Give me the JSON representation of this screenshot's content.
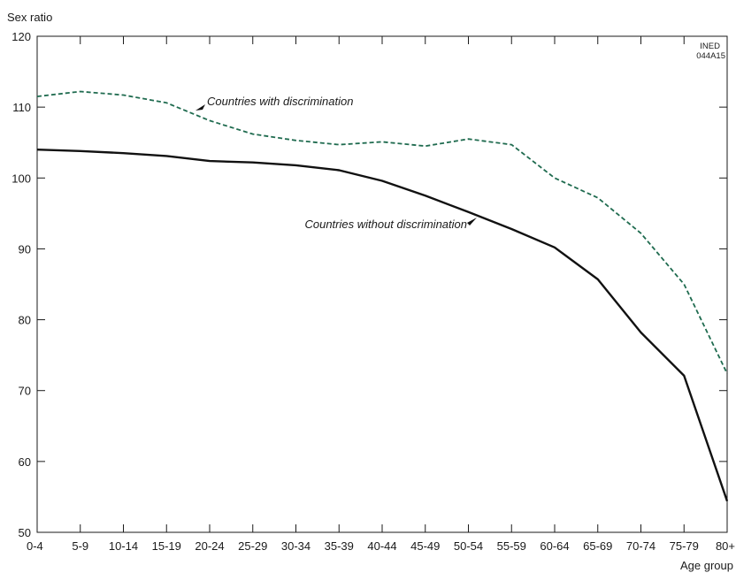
{
  "chart_data": {
    "type": "line",
    "xlabel": "Age group",
    "ylabel": "Sex ratio",
    "ylim": [
      50,
      120
    ],
    "yticks": [
      50,
      60,
      70,
      80,
      90,
      100,
      110,
      120
    ],
    "grid": false,
    "categories": [
      "0-4",
      "5-9",
      "10-14",
      "15-19",
      "20-24",
      "25-29",
      "30-34",
      "35-39",
      "40-44",
      "45-49",
      "50-54",
      "55-59",
      "60-64",
      "65-69",
      "70-74",
      "75-79",
      "80+"
    ],
    "series": [
      {
        "name": "Countries with discrimination",
        "color": "#1f6b4f",
        "style": "dashed",
        "values": [
          111.5,
          112.2,
          111.7,
          110.6,
          108.1,
          106.2,
          105.3,
          104.7,
          105.1,
          104.5,
          105.5,
          104.7,
          100.0,
          97.2,
          92.2,
          85.0,
          72.4
        ]
      },
      {
        "name": "Countries without discrimination",
        "color": "#111111",
        "style": "solid",
        "values": [
          104.0,
          103.8,
          103.5,
          103.1,
          102.4,
          102.2,
          101.8,
          101.1,
          99.6,
          97.5,
          95.2,
          92.8,
          90.2,
          85.7,
          78.2,
          72.1,
          54.4
        ]
      }
    ],
    "source_code": [
      "INED",
      "044A15"
    ]
  }
}
